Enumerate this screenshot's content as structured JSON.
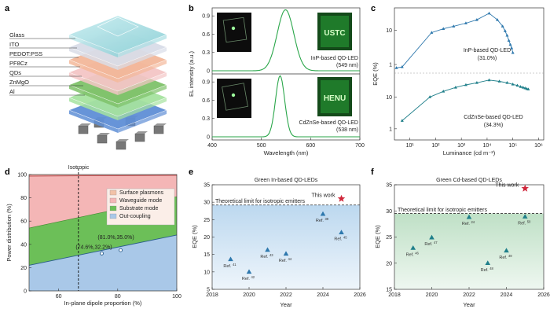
{
  "panels": {
    "a": "a",
    "b": "b",
    "c": "c",
    "d": "d",
    "e": "e",
    "f": "f"
  },
  "device_layers": [
    "Glass",
    "ITO",
    "PEDOT:PSS",
    "PF8Cz",
    "QDs",
    "ZnMgO",
    "Al"
  ],
  "colors": {
    "green_led": "#2aa64a",
    "blue_marker": "#2e78ad",
    "teal_line": "#1f7f8a",
    "star": "#d0283c",
    "surface_plasmons": "#f2c2a8",
    "waveguide_mode": "#f4b6b6",
    "substrate_mode": "#6cbf58",
    "out_coupling": "#a9c8e8"
  },
  "chart_data": [
    {
      "panel": "b",
      "type": "line",
      "xlabel": "Wavelength (nm)",
      "ylabel": "EL intensity (a.u.)",
      "xlim": [
        400,
        700
      ],
      "xticks": [
        400,
        500,
        600,
        700
      ],
      "ylim": [
        0,
        1
      ],
      "yticks": [
        0,
        0.3,
        0.6,
        0.9
      ],
      "series": [
        {
          "label": "InP-based QD-LED",
          "sublabel": "(549 nm)",
          "peak": 549,
          "fwhm": 40,
          "inset_text": "USTC"
        },
        {
          "label": "CdZnSe-based QD-LED",
          "sublabel": "(538 nm)",
          "peak": 538,
          "fwhm": 22,
          "inset_text": "HENU"
        }
      ]
    },
    {
      "panel": "c",
      "type": "line",
      "scale": "log",
      "xlabel": "Luminance (cd m⁻²)",
      "ylabel": "EQE (%)",
      "xticks": [
        "10¹",
        "10²",
        "10³",
        "10⁴",
        "10⁵",
        "10⁶"
      ],
      "yticks": [
        "1",
        "10"
      ],
      "series": [
        {
          "label": "InP-based QD-LED",
          "sublabel": "(31.0%)",
          "x": [
            3,
            5,
            70,
            200,
            500,
            1500,
            4000,
            12000,
            25000,
            40000,
            50000,
            60000,
            70000,
            80000,
            90000,
            100000
          ],
          "y": [
            0.8,
            0.85,
            8.5,
            11,
            13,
            16,
            20,
            31,
            20,
            13,
            9.5,
            7,
            5,
            3.8,
            3,
            2.2
          ]
        },
        {
          "label": "CdZnSe-based QD-LED",
          "sublabel": "(34.3%)",
          "x": [
            5,
            60,
            200,
            600,
            1500,
            4000,
            12000,
            30000,
            60000,
            100000,
            150000,
            200000,
            250000,
            300000,
            350000,
            400000
          ],
          "y": [
            1.8,
            10,
            15,
            20,
            24,
            28,
            34,
            31,
            28,
            25,
            23,
            21,
            20,
            19,
            18,
            17.5
          ]
        }
      ]
    },
    {
      "panel": "d",
      "type": "area",
      "title": "Isotropic",
      "xlabel": "In-plane dipole proportion (%)",
      "ylabel": "Power distribution (%)",
      "xlim": [
        50,
        100
      ],
      "xticks": [
        60,
        80,
        100
      ],
      "ylim": [
        0,
        100
      ],
      "yticks": [
        0,
        20,
        40,
        60,
        80,
        100
      ],
      "x": [
        50,
        100
      ],
      "series": [
        {
          "name": "Out-coupling",
          "values": [
            22,
            48
          ]
        },
        {
          "name": "Substrate mode",
          "values": [
            54,
            81
          ]
        },
        {
          "name": "Waveguide mode",
          "values": [
            99.5,
            101
          ]
        },
        {
          "name": "Surface plasmons",
          "values": [
            101,
            102
          ]
        }
      ],
      "isotropic_x": 66.7,
      "points": [
        {
          "x": 74.6,
          "y": 32.2,
          "label": "(74.6%,32.2%)"
        },
        {
          "x": 81.0,
          "y": 35.0,
          "label": "(81.0%,35.0%)"
        }
      ]
    },
    {
      "panel": "e",
      "type": "scatter",
      "title": "Green In-based QD-LEDs",
      "xlabel": "Year",
      "ylabel": "EQE (%)",
      "xlim": [
        2018,
        2026
      ],
      "xticks": [
        2018,
        2020,
        2022,
        2024,
        2026
      ],
      "ylim": [
        5,
        35
      ],
      "yticks": [
        5,
        10,
        15,
        20,
        25,
        30,
        35
      ],
      "limit_y": 29.2,
      "limit_label": "Theoretical limit for isotropic emitters",
      "this_work": {
        "x": 2025,
        "y": 31,
        "label": "This work"
      },
      "points": [
        {
          "x": 2019,
          "y": 13.6,
          "ref": "Ref.",
          "num": "41"
        },
        {
          "x": 2020,
          "y": 10.0,
          "ref": "Ref.",
          "num": "42"
        },
        {
          "x": 2021,
          "y": 16.3,
          "ref": "Ref.",
          "num": "43"
        },
        {
          "x": 2022,
          "y": 15.2,
          "ref": "Ref.",
          "num": "44"
        },
        {
          "x": 2024,
          "y": 26.6,
          "ref": "Ref.",
          "num": "39"
        },
        {
          "x": 2025,
          "y": 21.3,
          "ref": "Ref.",
          "num": "45"
        }
      ]
    },
    {
      "panel": "f",
      "type": "scatter",
      "title": "Green Cd-based QD-LEDs",
      "xlabel": "Year",
      "ylabel": "EQE (%)",
      "xlim": [
        2018,
        2026
      ],
      "xticks": [
        2018,
        2020,
        2022,
        2024,
        2026
      ],
      "ylim": [
        15,
        35
      ],
      "yticks": [
        15,
        20,
        25,
        30,
        35
      ],
      "limit_y": 29.5,
      "limit_label": "Theoretical limit for isotropic emitters",
      "this_work": {
        "x": 2025,
        "y": 34.3,
        "label": "This work"
      },
      "points": [
        {
          "x": 2019,
          "y": 22.9,
          "ref": "Ref.",
          "num": "46"
        },
        {
          "x": 2020,
          "y": 24.9,
          "ref": "Ref.",
          "num": "47"
        },
        {
          "x": 2022,
          "y": 28.8,
          "ref": "Ref.",
          "num": "24"
        },
        {
          "x": 2023,
          "y": 20.0,
          "ref": "Ref.",
          "num": "48"
        },
        {
          "x": 2024,
          "y": 22.4,
          "ref": "Ref.",
          "num": "49"
        },
        {
          "x": 2025,
          "y": 28.9,
          "ref": "Ref.",
          "num": "50"
        }
      ]
    }
  ]
}
